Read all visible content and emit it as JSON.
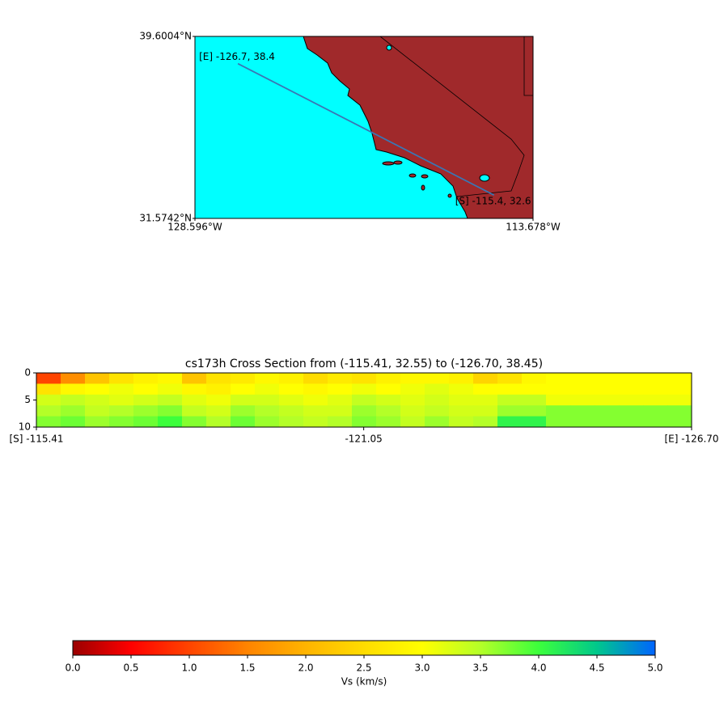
{
  "chart_data": [
    {
      "type": "map",
      "xlim": [
        -128.596,
        -113.678
      ],
      "ylim": [
        31.5742,
        39.6004
      ],
      "xticks": [
        {
          "value": -128.596,
          "label": "128.596°W"
        },
        {
          "value": -113.678,
          "label": "113.678°W"
        }
      ],
      "yticks": [
        {
          "value": 39.6004,
          "label": "39.6004°N"
        },
        {
          "value": 31.5742,
          "label": "31.5742°N"
        }
      ],
      "ocean_color": "#00ffff",
      "land_color": "#a0292b",
      "route": {
        "x": [
          -126.7,
          -115.4
        ],
        "y": [
          38.4,
          32.6
        ],
        "color": "#3a76b4"
      },
      "point_labels": [
        "[E] -126.7, 38.4",
        "[S] -115.4, 32.6"
      ]
    },
    {
      "type": "heatmap",
      "title": "cs173h Cross Section from (-115.41, 32.55) to (-126.70, 38.45)",
      "xlim": [
        -115.41,
        -126.7
      ],
      "xticks": [
        {
          "value": -115.41,
          "label": "[S] -115.41"
        },
        {
          "value": -121.05,
          "label": "-121.05"
        },
        {
          "value": -126.7,
          "label": "[E] -126.70"
        }
      ],
      "ylim": [
        10,
        0
      ],
      "yticks": [
        0,
        5,
        10
      ],
      "depth_bins": [
        0,
        2,
        4,
        6,
        8,
        10
      ],
      "values": [
        [
          1.0,
          1.6,
          2.2,
          2.6,
          2.8,
          2.9,
          2.2,
          2.6,
          2.7,
          2.9,
          2.8,
          2.5,
          2.7,
          2.6,
          2.8,
          2.9,
          2.9,
          2.8,
          2.4,
          2.6,
          2.9,
          3.0,
          3.0,
          3.0,
          3.0,
          3.0,
          3.0
        ],
        [
          2.6,
          2.9,
          3.0,
          3.1,
          3.0,
          3.1,
          2.9,
          2.8,
          3.0,
          3.1,
          3.0,
          2.9,
          3.0,
          3.1,
          3.0,
          3.1,
          3.2,
          3.1,
          3.0,
          3.0,
          3.0,
          3.0,
          3.0,
          3.0,
          3.0,
          3.0,
          3.0
        ],
        [
          3.3,
          3.4,
          3.3,
          3.2,
          3.3,
          3.4,
          3.2,
          3.1,
          3.3,
          3.3,
          3.2,
          3.1,
          3.2,
          3.4,
          3.3,
          3.2,
          3.3,
          3.2,
          3.2,
          3.4,
          3.4,
          3.1,
          3.1,
          3.1,
          3.1,
          3.1,
          3.1
        ],
        [
          3.5,
          3.6,
          3.4,
          3.5,
          3.6,
          3.7,
          3.4,
          3.3,
          3.6,
          3.5,
          3.4,
          3.3,
          3.3,
          3.6,
          3.5,
          3.3,
          3.4,
          3.3,
          3.3,
          3.6,
          3.6,
          3.7,
          3.7,
          3.7,
          3.7,
          3.7,
          3.7
        ],
        [
          3.7,
          3.8,
          3.6,
          3.7,
          3.8,
          4.0,
          3.7,
          3.5,
          3.8,
          3.6,
          3.5,
          3.4,
          3.5,
          3.7,
          3.6,
          3.4,
          3.6,
          3.4,
          3.5,
          4.1,
          4.1,
          3.7,
          3.7,
          3.7,
          3.7,
          3.7,
          3.7
        ]
      ]
    },
    {
      "type": "colorbar",
      "label": "Vs (km/s)",
      "xlim": [
        0,
        5
      ],
      "xticks": [
        {
          "value": 0,
          "label": "0.0"
        },
        {
          "value": 0.5,
          "label": "0.5"
        },
        {
          "value": 1,
          "label": "1.0"
        },
        {
          "value": 1.5,
          "label": "1.5"
        },
        {
          "value": 2,
          "label": "2.0"
        },
        {
          "value": 2.5,
          "label": "2.5"
        },
        {
          "value": 3,
          "label": "3.0"
        },
        {
          "value": 3.5,
          "label": "3.5"
        },
        {
          "value": 4,
          "label": "4.0"
        },
        {
          "value": 4.5,
          "label": "4.5"
        },
        {
          "value": 5,
          "label": "5.0"
        }
      ],
      "colors": [
        "#9a0000",
        "#ff0000",
        "#ff4400",
        "#ff8400",
        "#ffb400",
        "#ffdc00",
        "#ffff00",
        "#b4ff28",
        "#3cff3c",
        "#00c88c",
        "#0064ff"
      ]
    }
  ]
}
